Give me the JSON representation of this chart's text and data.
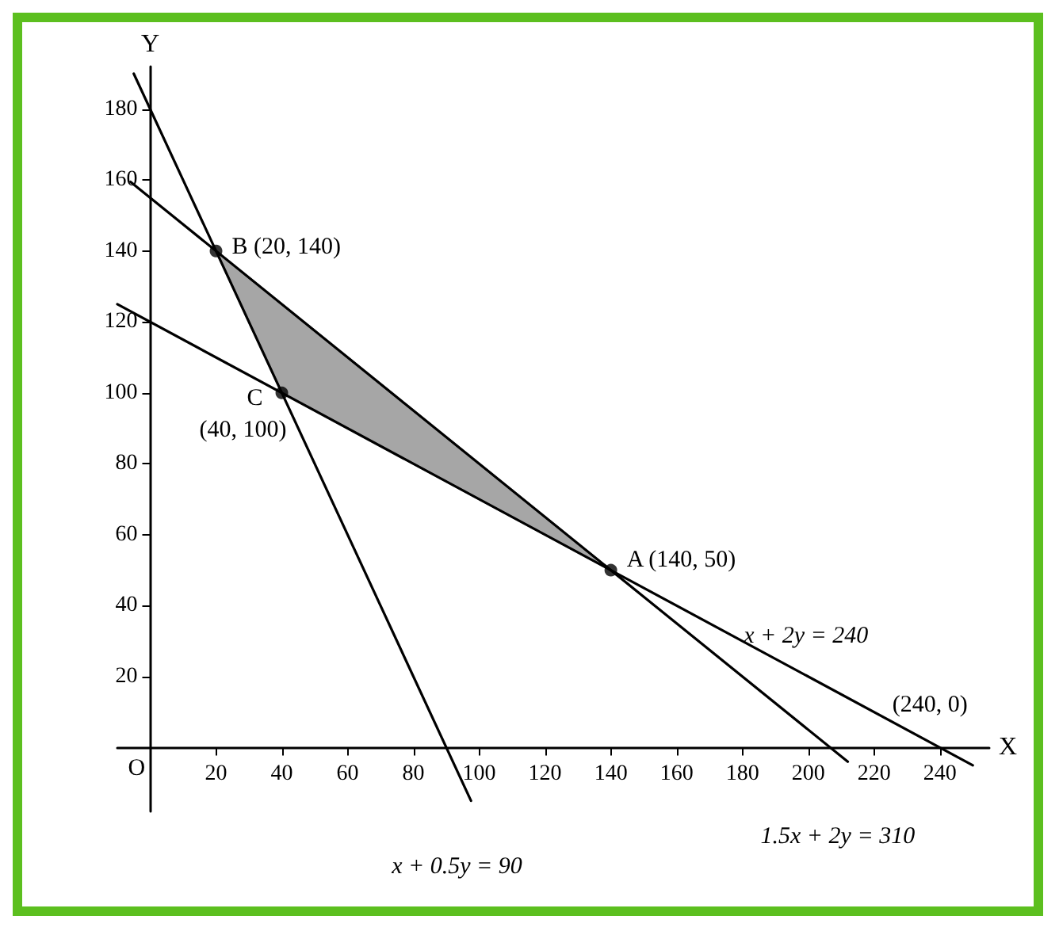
{
  "chart_data": {
    "type": "line",
    "xlabel": "X",
    "ylabel": "Y",
    "xlim": [
      -10,
      255
    ],
    "ylim": [
      -18,
      192
    ],
    "xticks": [
      20,
      40,
      60,
      80,
      100,
      120,
      140,
      160,
      180,
      200,
      220,
      240
    ],
    "yticks": [
      20,
      40,
      60,
      80,
      100,
      120,
      140,
      160,
      180
    ],
    "grid": false,
    "marker": "none",
    "line_style": "solid",
    "series": [
      {
        "type": "area",
        "color": "#a6a6a6",
        "x": [
          20,
          140,
          40,
          20
        ],
        "values": [
          140,
          50,
          100,
          140
        ]
      },
      {
        "color": "#000000",
        "x": [
          -5,
          97.5
        ],
        "values": [
          190,
          -15
        ]
      },
      {
        "color": "#000000",
        "x": [
          -6,
          212
        ],
        "values": [
          159.5,
          -4
        ]
      },
      {
        "color": "#000000",
        "x": [
          -10,
          250
        ],
        "values": [
          125,
          -5
        ]
      },
      {
        "type": "scatter",
        "color": "#000000",
        "marker": "circle",
        "x": [
          140,
          20,
          40
        ],
        "values": [
          50,
          140,
          100
        ]
      }
    ],
    "annotations": [
      {
        "text": "A (140, 50)",
        "x": 140,
        "y": 50
      },
      {
        "text": "B (20, 140)",
        "x": 20,
        "y": 140
      },
      {
        "text": "C",
        "x": 40,
        "y": 100
      },
      {
        "text": "(40, 100)",
        "x": 40,
        "y": 100
      },
      "O",
      {
        "text": "(240, 0)",
        "x": 240,
        "y": 0
      },
      {
        "text": "x + 2y = 240",
        "x": 190,
        "y": 25
      },
      {
        "text": "x + 0.5y = 90",
        "x": 97.5,
        "y": -15
      },
      {
        "text": "1.5x + 2y = 310",
        "x": 212,
        "y": -4
      }
    ]
  }
}
